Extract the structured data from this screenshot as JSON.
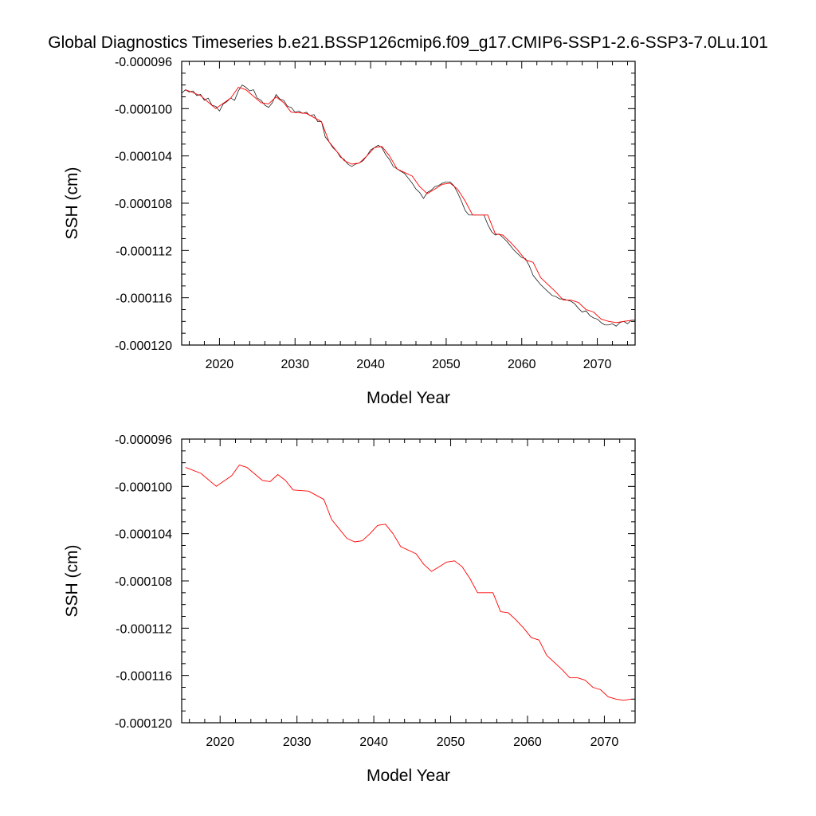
{
  "title": "Global Diagnostics Timeseries b.e21.BSSP126cmip6.f09_g17.CMIP6-SSP1-2.6-SSP3-7.0Lu.101",
  "colors": {
    "annual": "#ff0000",
    "monthly": "#000000",
    "axis": "#000000"
  },
  "chart_data": [
    {
      "type": "line",
      "title": "",
      "xlabel": "Model Year",
      "ylabel": "SSH (cm)",
      "xlim": [
        2015,
        2075
      ],
      "ylim": [
        -0.00012,
        -9.6e-05
      ],
      "x_ticks": [
        2020,
        2030,
        2040,
        2050,
        2060,
        2070
      ],
      "y_ticks": [
        -9.6e-05,
        -0.0001,
        -0.000104,
        -0.000108,
        -0.000112,
        -0.000116,
        -0.00012
      ],
      "y_tick_labels": [
        "-0.000096",
        "-0.000100",
        "-0.000104",
        "-0.000108",
        "-0.000112",
        "-0.000116",
        "-0.000120"
      ],
      "grid": false,
      "legend": "none",
      "series": [
        {
          "style": "monthly",
          "color": "#000000",
          "x": [
            2015.0,
            2015.5,
            2016.0,
            2016.5,
            2017.0,
            2017.5,
            2018.0,
            2018.5,
            2019.0,
            2019.5,
            2020.0,
            2020.5,
            2021.0,
            2021.5,
            2022.0,
            2022.5,
            2023.0,
            2023.5,
            2024.0,
            2024.5,
            2025.0,
            2025.5,
            2026.0,
            2026.5,
            2027.0,
            2027.5,
            2028.0,
            2028.5,
            2029.0,
            2029.5,
            2030.0,
            2030.5,
            2031.0,
            2031.5,
            2032.0,
            2032.5,
            2033.0,
            2033.5,
            2034.0,
            2034.5,
            2035.0,
            2035.5,
            2036.0,
            2036.5,
            2037.0,
            2037.5,
            2038.0,
            2038.5,
            2039.0,
            2039.5,
            2040.0,
            2040.5,
            2041.0,
            2041.5,
            2042.0,
            2042.5,
            2043.0,
            2043.5,
            2044.0,
            2044.5,
            2045.0,
            2045.5,
            2046.0,
            2046.5,
            2047.0,
            2047.5,
            2048.0,
            2048.5,
            2049.0,
            2049.5,
            2050.0,
            2050.5,
            2051.0,
            2051.5,
            2052.0,
            2052.5,
            2053.0,
            2053.5,
            2054.0,
            2054.5,
            2055.0,
            2055.5,
            2056.0,
            2056.5,
            2057.0,
            2057.5,
            2058.0,
            2058.5,
            2059.0,
            2059.5,
            2060.0,
            2060.5,
            2061.0,
            2061.5,
            2062.0,
            2062.5,
            2063.0,
            2063.5,
            2064.0,
            2064.5,
            2065.0,
            2065.5,
            2066.0,
            2066.5,
            2067.0,
            2067.5,
            2068.0,
            2068.5,
            2069.0,
            2069.5,
            2070.0,
            2070.5,
            2071.0,
            2071.5,
            2072.0,
            2072.5,
            2073.0,
            2073.5,
            2074.0,
            2074.5,
            2075.0
          ],
          "y": [
            -9.87e-05,
            -9.84e-05,
            -9.86e-05,
            -9.85e-05,
            -9.89e-05,
            -9.88e-05,
            -9.93e-05,
            -9.91e-05,
            -9.97e-05,
            -9.98e-05,
            -0.0001002,
            -9.96e-05,
            -9.94e-05,
            -9.91e-05,
            -9.93e-05,
            -9.85e-05,
            -9.8e-05,
            -9.82e-05,
            -9.85e-05,
            -9.84e-05,
            -9.91e-05,
            -9.93e-05,
            -9.97e-05,
            -9.99e-05,
            -9.95e-05,
            -9.88e-05,
            -9.92e-05,
            -9.93e-05,
            -9.98e-05,
            -9.99e-05,
            -0.0001003,
            -0.0001002,
            -0.0001004,
            -0.0001003,
            -0.0001006,
            -0.0001005,
            -0.0001011,
            -0.0001011,
            -0.0001024,
            -0.0001028,
            -0.0001033,
            -0.0001036,
            -0.0001041,
            -0.0001043,
            -0.0001047,
            -0.0001049,
            -0.0001047,
            -0.0001046,
            -0.0001044,
            -0.000104,
            -0.0001035,
            -0.0001033,
            -0.0001031,
            -0.0001033,
            -0.0001039,
            -0.0001043,
            -0.0001049,
            -0.0001051,
            -0.0001053,
            -0.0001055,
            -0.0001059,
            -0.0001063,
            -0.0001068,
            -0.0001071,
            -0.0001076,
            -0.0001071,
            -0.0001069,
            -0.0001066,
            -0.0001065,
            -0.0001063,
            -0.0001062,
            -0.0001062,
            -0.0001065,
            -0.0001071,
            -0.0001078,
            -0.0001086,
            -0.000109,
            -0.000109,
            -0.000109,
            -0.000109,
            -0.000109,
            -0.0001098,
            -0.0001104,
            -0.0001107,
            -0.0001106,
            -0.0001109,
            -0.0001112,
            -0.0001116,
            -0.000112,
            -0.0001123,
            -0.0001126,
            -0.0001127,
            -0.0001133,
            -0.0001141,
            -0.0001145,
            -0.0001149,
            -0.0001152,
            -0.0001155,
            -0.0001158,
            -0.0001159,
            -0.0001161,
            -0.0001161,
            -0.0001162,
            -0.0001163,
            -0.0001165,
            -0.0001169,
            -0.0001172,
            -0.0001171,
            -0.0001175,
            -0.0001177,
            -0.0001178,
            -0.0001181,
            -0.0001183,
            -0.0001183,
            -0.0001182,
            -0.0001184,
            -0.0001181,
            -0.000118,
            -0.0001182,
            -0.0001179,
            -0.0001179
          ]
        },
        {
          "style": "annual",
          "color": "#ff0000",
          "x": [
            2015.5,
            2017.5,
            2019.5,
            2021.5,
            2022.5,
            2023.5,
            2025.5,
            2026.5,
            2027.5,
            2028.5,
            2029.5,
            2031.5,
            2033.5,
            2034.5,
            2035.5,
            2036.5,
            2037.5,
            2038.5,
            2039.5,
            2040.5,
            2041.5,
            2042.5,
            2043.5,
            2045.5,
            2046.5,
            2047.5,
            2048.5,
            2049.5,
            2050.5,
            2051.5,
            2052.5,
            2053.5,
            2055.5,
            2056.5,
            2057.5,
            2058.5,
            2059.5,
            2060.5,
            2061.5,
            2062.5,
            2063.5,
            2064.5,
            2065.5,
            2066.5,
            2067.5,
            2068.5,
            2069.5,
            2070.5,
            2071.5,
            2072.5,
            2073.5,
            2074.5
          ],
          "y": [
            -9.84e-05,
            -9.89e-05,
            -0.0001,
            -9.91e-05,
            -9.82e-05,
            -9.84e-05,
            -9.95e-05,
            -9.96e-05,
            -9.9e-05,
            -9.95e-05,
            -0.0001003,
            -0.0001004,
            -0.0001011,
            -0.0001028,
            -0.0001036,
            -0.0001044,
            -0.0001047,
            -0.0001046,
            -0.000104,
            -0.0001033,
            -0.0001032,
            -0.000104,
            -0.0001051,
            -0.0001057,
            -0.0001066,
            -0.0001072,
            -0.0001068,
            -0.0001064,
            -0.0001063,
            -0.0001068,
            -0.0001078,
            -0.000109,
            -0.000109,
            -0.0001106,
            -0.0001107,
            -0.0001113,
            -0.000112,
            -0.0001128,
            -0.000113,
            -0.0001143,
            -0.0001149,
            -0.0001155,
            -0.0001162,
            -0.0001162,
            -0.0001164,
            -0.000117,
            -0.0001172,
            -0.0001178,
            -0.000118,
            -0.0001181,
            -0.000118,
            -0.0001179
          ]
        }
      ]
    },
    {
      "type": "line",
      "title": "",
      "xlabel": "Model Year",
      "ylabel": "SSH (cm)",
      "xlim": [
        2015,
        2074
      ],
      "ylim": [
        -0.00012,
        -9.6e-05
      ],
      "x_ticks": [
        2020,
        2030,
        2040,
        2050,
        2060,
        2070
      ],
      "y_ticks": [
        -9.6e-05,
        -0.0001,
        -0.000104,
        -0.000108,
        -0.000112,
        -0.000116,
        -0.00012
      ],
      "y_tick_labels": [
        "-0.000096",
        "-0.000100",
        "-0.000104",
        "-0.000108",
        "-0.000112",
        "-0.000116",
        "-0.000120"
      ],
      "grid": false,
      "legend": "none",
      "series": [
        {
          "style": "annual",
          "color": "#ff0000",
          "x": [
            2015.5,
            2017.5,
            2019.5,
            2021.5,
            2022.5,
            2023.5,
            2025.5,
            2026.5,
            2027.5,
            2028.5,
            2029.5,
            2031.5,
            2033.5,
            2034.5,
            2035.5,
            2036.5,
            2037.5,
            2038.5,
            2039.5,
            2040.5,
            2041.5,
            2042.5,
            2043.5,
            2045.5,
            2046.5,
            2047.5,
            2048.5,
            2049.5,
            2050.5,
            2051.5,
            2052.5,
            2053.5,
            2055.5,
            2056.5,
            2057.5,
            2058.5,
            2059.5,
            2060.5,
            2061.5,
            2062.5,
            2063.5,
            2064.5,
            2065.5,
            2066.5,
            2067.5,
            2068.5,
            2069.5,
            2070.5,
            2071.5,
            2072.5,
            2073.5
          ],
          "y": [
            -9.84e-05,
            -9.89e-05,
            -0.0001,
            -9.91e-05,
            -9.82e-05,
            -9.84e-05,
            -9.95e-05,
            -9.96e-05,
            -9.9e-05,
            -9.95e-05,
            -0.0001003,
            -0.0001004,
            -0.0001011,
            -0.0001028,
            -0.0001036,
            -0.0001044,
            -0.0001047,
            -0.0001046,
            -0.000104,
            -0.0001033,
            -0.0001032,
            -0.000104,
            -0.0001051,
            -0.0001057,
            -0.0001066,
            -0.0001072,
            -0.0001068,
            -0.0001064,
            -0.0001063,
            -0.0001068,
            -0.0001078,
            -0.000109,
            -0.000109,
            -0.0001106,
            -0.0001107,
            -0.0001113,
            -0.000112,
            -0.0001128,
            -0.000113,
            -0.0001143,
            -0.0001149,
            -0.0001155,
            -0.0001162,
            -0.0001162,
            -0.0001164,
            -0.000117,
            -0.0001172,
            -0.0001178,
            -0.000118,
            -0.0001181,
            -0.000118
          ]
        }
      ]
    }
  ]
}
